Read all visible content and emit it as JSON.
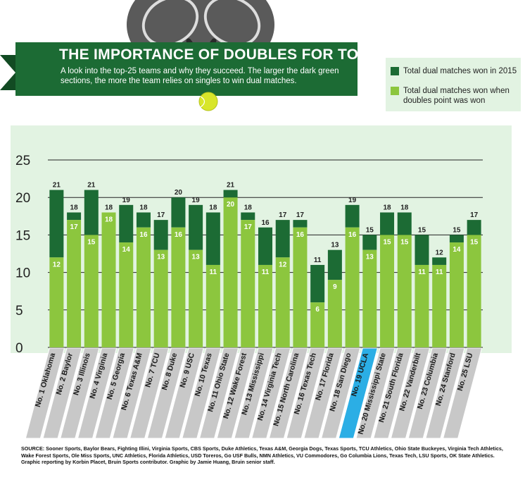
{
  "header": {
    "title": "THE IMPORTANCE OF DOUBLES FOR TOP TEAMS",
    "subtitle": "A look into the top-25 teams and why they succeed. The larger the dark green sections, the more the team relies on singles to win dual matches."
  },
  "legend": {
    "total": "Total dual matches won in 2015",
    "doubles": "Total dual matches won when doubles point was won"
  },
  "colors": {
    "dark": "#1c6b34",
    "light": "#8cc63e",
    "plot_bg": "#e2f3e2",
    "label_bg": "#c8c8c8",
    "highlight": "#2baee5"
  },
  "chart_data": {
    "type": "bar",
    "title": "THE IMPORTANCE OF DOUBLES FOR TOP TEAMS",
    "ylim": [
      0,
      25
    ],
    "yticks": [
      0,
      5,
      10,
      15,
      20,
      25
    ],
    "highlight": "No. 19 UCLA",
    "categories": [
      "No. 1 Oklahoma",
      "No. 2 Baylor",
      "No. 3 Illinois",
      "No. 4 Virginia",
      "No. 5 Georgia",
      "No. 6 Texas A&M",
      "No. 7 TCU",
      "No. 8 Duke",
      "No. 9 USC",
      "No. 10 Texas",
      "No. 11 Ohio State",
      "No. 12 Wake Forest",
      "No. 13 Mississippi",
      "No. 14 Virginia Tech",
      "No. 15 North Carolina",
      "No. 16 Texas Tech",
      "No. 17 Florida",
      "No. 18 San Diego",
      "No. 19 UCLA",
      "No. 20 Mississippi State",
      "No. 21 South Florida",
      "No. 22 Vanderbilt",
      "No. 23 Columbia",
      "No. 24 Stanford",
      "No. 25 LSU"
    ],
    "series": [
      {
        "name": "Total dual matches won in 2015",
        "values": [
          21,
          18,
          21,
          18,
          19,
          18,
          17,
          20,
          19,
          18,
          21,
          18,
          16,
          17,
          17,
          11,
          13,
          19,
          15,
          18,
          18,
          15,
          12,
          15,
          17
        ]
      },
      {
        "name": "Total dual matches won when doubles point was won",
        "values": [
          12,
          17,
          15,
          18,
          14,
          16,
          13,
          16,
          13,
          11,
          20,
          17,
          11,
          12,
          16,
          6,
          9,
          16,
          13,
          15,
          15,
          11,
          11,
          14,
          15
        ]
      }
    ]
  },
  "source": "SOURCE: Sooner Sports, Baylor Bears, Fighting Illini, Virginia Sports, CBS Sports, Duke Athletics, Texas A&M, Georgia Dogs, Texas Sports, TCU Athletics, Ohio State Buckeyes, Virginia Tech Athletics, Wake Forest Sports, Ole Miss Sports, UNC Athletics, Florida Athletics, USD Toreros, Go USF Bulls, NMN Athletics, VU Commodores, Go Columbia Lions, Texas Tech, LSU Sports, OK State Athletics. Graphic reporting by Korbin Placet, Bruin Sports contributor. Graphic by Jamie Huang, Bruin senior staff."
}
